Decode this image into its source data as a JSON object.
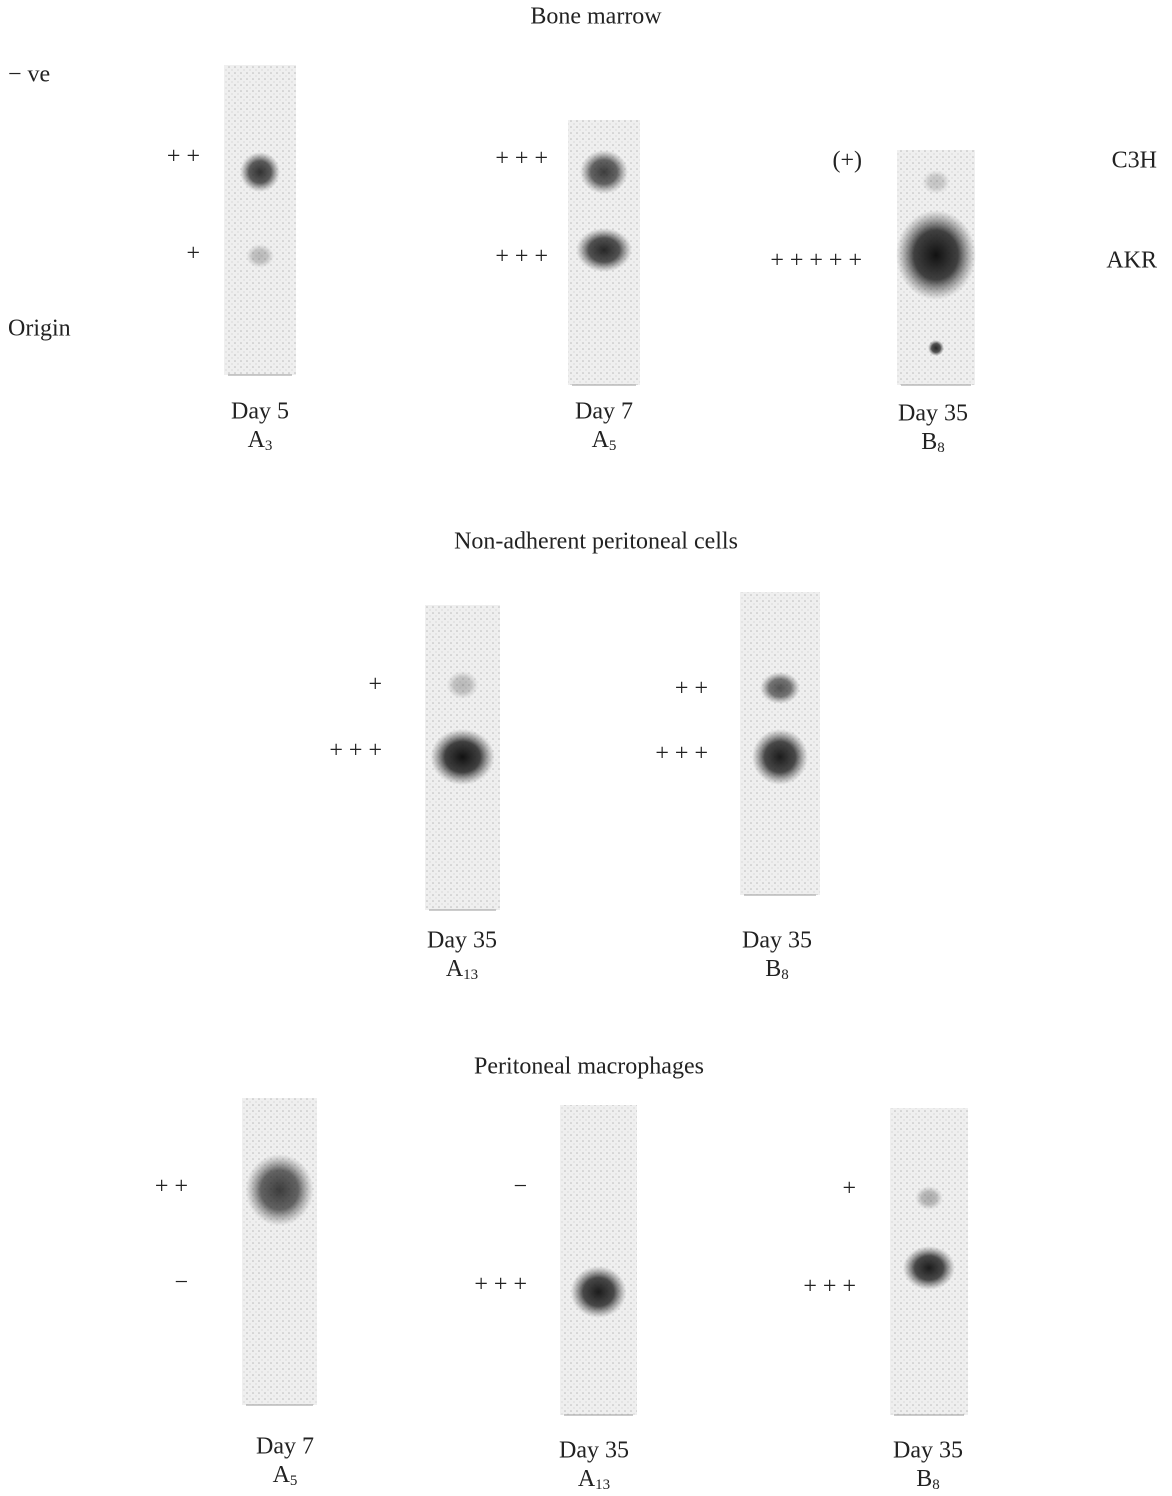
{
  "axis_labels": {
    "top": "− ve",
    "bottom": "Origin"
  },
  "band_labels": [
    "C3H",
    "AKR"
  ],
  "panels": [
    {
      "title": "Bone marrow",
      "lanes": [
        {
          "day": "Day 5",
          "sample": "A",
          "subscript": "3",
          "bands": [
            "+ +",
            "+"
          ]
        },
        {
          "day": "Day 7",
          "sample": "A",
          "subscript": "5",
          "bands": [
            "+ + +",
            "+ + +"
          ]
        },
        {
          "day": "Day 35",
          "sample": "B",
          "subscript": "8",
          "bands": [
            "(+)",
            "+ + + + +"
          ]
        }
      ]
    },
    {
      "title": "Non-adherent peritoneal cells",
      "lanes": [
        {
          "day": "Day 35",
          "sample": "A",
          "subscript": "13",
          "bands": [
            "+",
            "+ + +"
          ]
        },
        {
          "day": "Day 35",
          "sample": "B",
          "subscript": "8",
          "bands": [
            "+ +",
            "+ + +"
          ]
        }
      ]
    },
    {
      "title": "Peritoneal macrophages",
      "lanes": [
        {
          "day": "Day 7",
          "sample": "A",
          "subscript": "5",
          "bands": [
            "+ +",
            "−"
          ]
        },
        {
          "day": "Day 35",
          "sample": "A",
          "subscript": "13",
          "bands": [
            "−",
            "+ + +"
          ]
        },
        {
          "day": "Day 35",
          "sample": "B",
          "subscript": "8",
          "bands": [
            "+",
            "+ + +"
          ]
        }
      ]
    }
  ]
}
